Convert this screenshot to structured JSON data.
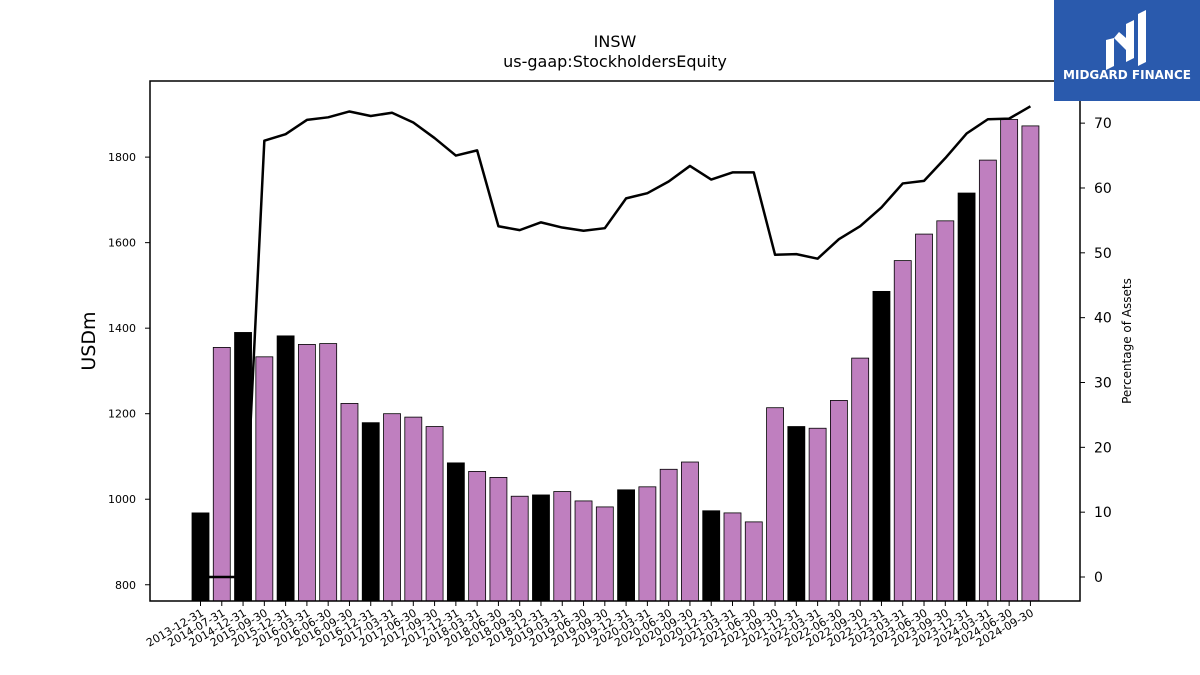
{
  "chart_data": {
    "type": "bar",
    "title": "INSW",
    "subtitle": "us-gaap:StockholdersEquity",
    "ylabel": "USDm",
    "y2label": "Percentage of Assets",
    "ylim": [
      762,
      1978
    ],
    "y2lim": [
      -3.7,
      76.5
    ],
    "yticks": [
      800,
      1000,
      1200,
      1400,
      1600,
      1800
    ],
    "y2ticks": [
      0,
      10,
      20,
      30,
      40,
      50,
      60,
      70
    ],
    "categories": [
      "2013-12-31",
      "2014-07-31",
      "2014-12-31",
      "2015-09-30",
      "2015-12-31",
      "2016-03-31",
      "2016-06-30",
      "2016-09-30",
      "2016-12-31",
      "2017-03-31",
      "2017-06-30",
      "2017-09-30",
      "2017-12-31",
      "2018-03-31",
      "2018-06-30",
      "2018-09-30",
      "2018-12-31",
      "2019-03-31",
      "2019-06-30",
      "2019-09-30",
      "2019-12-31",
      "2020-03-31",
      "2020-06-30",
      "2020-09-30",
      "2020-12-31",
      "2021-03-31",
      "2021-06-30",
      "2021-09-30",
      "2021-12-31",
      "2022-03-31",
      "2022-06-30",
      "2022-09-30",
      "2022-12-31",
      "2023-03-31",
      "2023-06-30",
      "2023-09-30",
      "2023-12-31",
      "2024-03-31",
      "2024-06-30",
      "2024-09-30"
    ],
    "series": [
      {
        "type": "bar",
        "values": [
          968,
          1355,
          1390,
          1333,
          1382,
          1362,
          1364,
          1224,
          1179,
          1200,
          1192,
          1170,
          1085,
          1065,
          1051,
          1007,
          1010,
          1018,
          996,
          982,
          1022,
          1029,
          1070,
          1087,
          973,
          968,
          947,
          1214,
          1170,
          1166,
          1231,
          1330,
          1486,
          1558,
          1620,
          1651,
          1716,
          1793,
          1888,
          1873
        ],
        "colors": [
          "#000000",
          "#bf7fbf",
          "#000000",
          "#bf7fbf",
          "#000000",
          "#bf7fbf",
          "#bf7fbf",
          "#bf7fbf",
          "#000000",
          "#bf7fbf",
          "#bf7fbf",
          "#bf7fbf",
          "#000000",
          "#bf7fbf",
          "#bf7fbf",
          "#bf7fbf",
          "#000000",
          "#bf7fbf",
          "#bf7fbf",
          "#bf7fbf",
          "#000000",
          "#bf7fbf",
          "#bf7fbf",
          "#bf7fbf",
          "#000000",
          "#bf7fbf",
          "#bf7fbf",
          "#bf7fbf",
          "#000000",
          "#bf7fbf",
          "#bf7fbf",
          "#bf7fbf",
          "#000000",
          "#bf7fbf",
          "#bf7fbf",
          "#bf7fbf",
          "#000000",
          "#bf7fbf",
          "#bf7fbf",
          "#bf7fbf"
        ]
      },
      {
        "type": "line",
        "axis": "right",
        "values": [
          0,
          0,
          0,
          67.3,
          68.3,
          70.5,
          70.9,
          71.8,
          71.1,
          71.6,
          70.1,
          67.7,
          65,
          65.8,
          54.1,
          53.5,
          54.7,
          53.9,
          53.4,
          53.8,
          58.4,
          59.2,
          61,
          63.4,
          61.3,
          62.4,
          62.4,
          49.7,
          49.8,
          49.1,
          52.1,
          54.1,
          57,
          60.7,
          61.1,
          64.6,
          68.4,
          70.6,
          70.7,
          72.6
        ],
        "color": "#000000"
      }
    ],
    "grid": false
  },
  "logo": {
    "text": "MIDGARD FINANCE",
    "bg_color": "#2a5aad"
  },
  "colors": {
    "annual_bar": "#000000",
    "quarter_bar": "#bf7fbf",
    "line": "#000000"
  }
}
